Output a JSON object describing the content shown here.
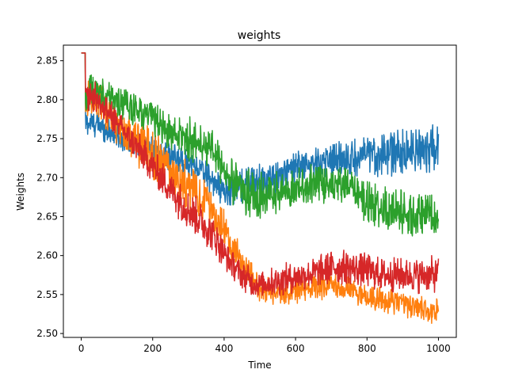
{
  "chart_data": {
    "type": "line",
    "title": "weights",
    "xlabel": "Time",
    "ylabel": "Weights",
    "xlim": [
      -50,
      1050
    ],
    "ylim": [
      2.495,
      2.87
    ],
    "grid": false,
    "xticks": [
      0,
      200,
      400,
      600,
      800,
      1000
    ],
    "yticks": [
      2.5,
      2.55,
      2.6,
      2.65,
      2.7,
      2.75,
      2.8,
      2.85
    ],
    "xtick_labels": [
      "0",
      "200",
      "400",
      "600",
      "800",
      "1000"
    ],
    "ytick_labels": [
      "2.50",
      "2.55",
      "2.60",
      "2.65",
      "2.70",
      "2.75",
      "2.80",
      "2.85"
    ],
    "series": [
      {
        "color": "#1f77b4",
        "x": [
          0,
          10,
          12,
          15,
          30,
          60,
          100,
          150,
          200,
          250,
          300,
          350,
          380,
          400,
          420,
          450,
          480,
          500,
          520,
          550,
          600,
          650,
          700,
          750,
          800,
          850,
          900,
          950,
          1000
        ],
        "lower": [
          2.86,
          2.86,
          2.75,
          2.75,
          2.75,
          2.745,
          2.735,
          2.73,
          2.715,
          2.705,
          2.7,
          2.685,
          2.67,
          2.66,
          2.66,
          2.665,
          2.67,
          2.675,
          2.675,
          2.68,
          2.69,
          2.695,
          2.7,
          2.7,
          2.7,
          2.7,
          2.7,
          2.705,
          2.705
        ],
        "upper": [
          2.86,
          2.86,
          2.79,
          2.79,
          2.79,
          2.785,
          2.77,
          2.76,
          2.755,
          2.745,
          2.74,
          2.725,
          2.71,
          2.705,
          2.71,
          2.715,
          2.72,
          2.72,
          2.72,
          2.725,
          2.735,
          2.74,
          2.75,
          2.75,
          2.755,
          2.76,
          2.765,
          2.77,
          2.77
        ]
      },
      {
        "color": "#ff7f0e",
        "x": [
          0,
          10,
          12,
          15,
          30,
          60,
          100,
          150,
          200,
          250,
          300,
          350,
          380,
          400,
          420,
          450,
          480,
          500,
          520,
          550,
          600,
          650,
          700,
          750,
          800,
          850,
          900,
          950,
          1000
        ],
        "lower": [
          2.86,
          2.86,
          2.77,
          2.77,
          2.78,
          2.765,
          2.74,
          2.715,
          2.695,
          2.675,
          2.655,
          2.635,
          2.62,
          2.6,
          2.585,
          2.57,
          2.55,
          2.54,
          2.535,
          2.535,
          2.535,
          2.54,
          2.545,
          2.54,
          2.53,
          2.525,
          2.52,
          2.515,
          2.51
        ],
        "upper": [
          2.86,
          2.86,
          2.83,
          2.83,
          2.83,
          2.82,
          2.8,
          2.78,
          2.765,
          2.74,
          2.72,
          2.7,
          2.68,
          2.66,
          2.64,
          2.61,
          2.59,
          2.575,
          2.575,
          2.57,
          2.575,
          2.58,
          2.58,
          2.575,
          2.565,
          2.56,
          2.555,
          2.55,
          2.545
        ]
      },
      {
        "color": "#2ca02c",
        "x": [
          0,
          10,
          12,
          15,
          30,
          60,
          100,
          150,
          200,
          250,
          300,
          350,
          380,
          400,
          420,
          450,
          480,
          500,
          520,
          550,
          600,
          650,
          700,
          750,
          800,
          850,
          900,
          950,
          1000
        ],
        "lower": [
          2.86,
          2.86,
          2.77,
          2.77,
          2.78,
          2.785,
          2.775,
          2.765,
          2.75,
          2.73,
          2.72,
          2.71,
          2.7,
          2.68,
          2.665,
          2.65,
          2.645,
          2.64,
          2.645,
          2.65,
          2.66,
          2.665,
          2.665,
          2.66,
          2.64,
          2.63,
          2.625,
          2.62,
          2.625
        ],
        "upper": [
          2.86,
          2.86,
          2.825,
          2.83,
          2.835,
          2.83,
          2.82,
          2.81,
          2.8,
          2.785,
          2.78,
          2.77,
          2.755,
          2.74,
          2.725,
          2.72,
          2.715,
          2.71,
          2.705,
          2.71,
          2.715,
          2.72,
          2.72,
          2.715,
          2.7,
          2.69,
          2.685,
          2.68,
          2.68
        ]
      },
      {
        "color": "#d62728",
        "x": [
          0,
          10,
          12,
          15,
          30,
          60,
          100,
          150,
          200,
          250,
          300,
          350,
          380,
          400,
          420,
          450,
          480,
          500,
          520,
          550,
          600,
          650,
          700,
          750,
          800,
          850,
          900,
          950,
          1000
        ],
        "lower": [
          2.86,
          2.86,
          2.78,
          2.78,
          2.785,
          2.77,
          2.75,
          2.72,
          2.69,
          2.66,
          2.63,
          2.61,
          2.595,
          2.58,
          2.57,
          2.555,
          2.545,
          2.545,
          2.545,
          2.545,
          2.55,
          2.555,
          2.56,
          2.56,
          2.555,
          2.55,
          2.55,
          2.55,
          2.55
        ],
        "upper": [
          2.86,
          2.86,
          2.825,
          2.83,
          2.83,
          2.815,
          2.79,
          2.765,
          2.74,
          2.71,
          2.69,
          2.665,
          2.645,
          2.625,
          2.61,
          2.595,
          2.585,
          2.58,
          2.585,
          2.59,
          2.595,
          2.6,
          2.61,
          2.61,
          2.605,
          2.6,
          2.6,
          2.6,
          2.6
        ]
      }
    ]
  }
}
